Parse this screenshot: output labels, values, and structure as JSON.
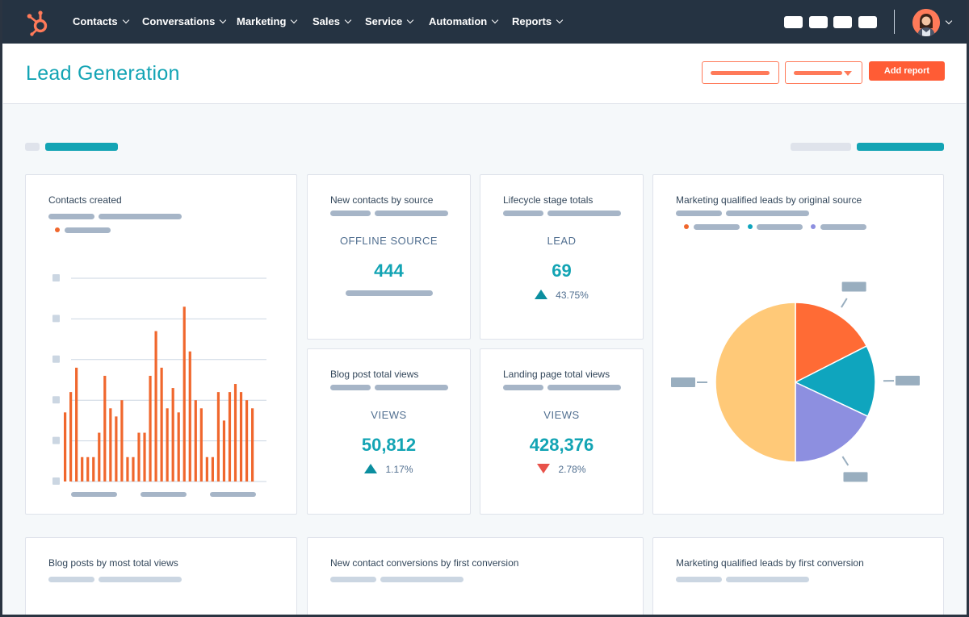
{
  "nav": {
    "items": [
      {
        "label": "Contacts"
      },
      {
        "label": "Conversations"
      },
      {
        "label": "Marketing"
      },
      {
        "label": "Sales"
      },
      {
        "label": "Service"
      },
      {
        "label": "Automation"
      },
      {
        "label": "Reports"
      }
    ]
  },
  "header": {
    "title": "Lead Generation",
    "add_report_label": "Add report"
  },
  "colors": {
    "accent": "#13a4b4",
    "brand": "#ff5c35",
    "nav_bg": "#253342",
    "bar": "#f0672d",
    "pie_orange": "#ff6b35",
    "pie_teal": "#0fa5be",
    "pie_purple": "#8d8fe0",
    "pie_yellow": "#ffc978"
  },
  "cards": {
    "contacts_created": {
      "title": "Contacts created"
    },
    "new_contacts": {
      "title": "New contacts by source",
      "label": "OFFLINE SOURCE",
      "value": "444"
    },
    "lifecycle": {
      "title": "Lifecycle stage totals",
      "label": "LEAD",
      "value": "69",
      "change": "43.75%",
      "direction": "up"
    },
    "blog_views": {
      "title": "Blog post total views",
      "label": "VIEWS",
      "value": "50,812",
      "change": "1.17%",
      "direction": "up"
    },
    "landing_views": {
      "title": "Landing page total views",
      "label": "VIEWS",
      "value": "428,376",
      "change": "2.78%",
      "direction": "down"
    },
    "mql_source": {
      "title": "Marketing qualified leads by original source"
    },
    "blog_posts": {
      "title": "Blog posts by most total views"
    },
    "conversions": {
      "title": "New contact conversions by first conversion"
    },
    "mql_conversion": {
      "title": "Marketing qualified leads by first conversion"
    }
  },
  "chart_data": [
    {
      "type": "bar",
      "ylim": [
        0,
        5
      ],
      "values": [
        1.7,
        2.2,
        2.8,
        0.6,
        0.6,
        0.6,
        1.2,
        2.6,
        1.8,
        1.6,
        2.0,
        0.6,
        0.6,
        1.2,
        1.2,
        2.6,
        3.7,
        2.8,
        1.8,
        2.3,
        1.7,
        4.3,
        3.2,
        2.0,
        1.8,
        0.6,
        0.6,
        2.2,
        1.5,
        2.2,
        2.4,
        2.2,
        2.0,
        1.8
      ]
    },
    {
      "type": "pie",
      "slices": [
        {
          "value": 17.5,
          "color": "#ff6b35"
        },
        {
          "value": 14.5,
          "color": "#0fa5be"
        },
        {
          "value": 18.0,
          "color": "#8d8fe0"
        },
        {
          "value": 50.0,
          "color": "#ffc978"
        }
      ]
    }
  ]
}
